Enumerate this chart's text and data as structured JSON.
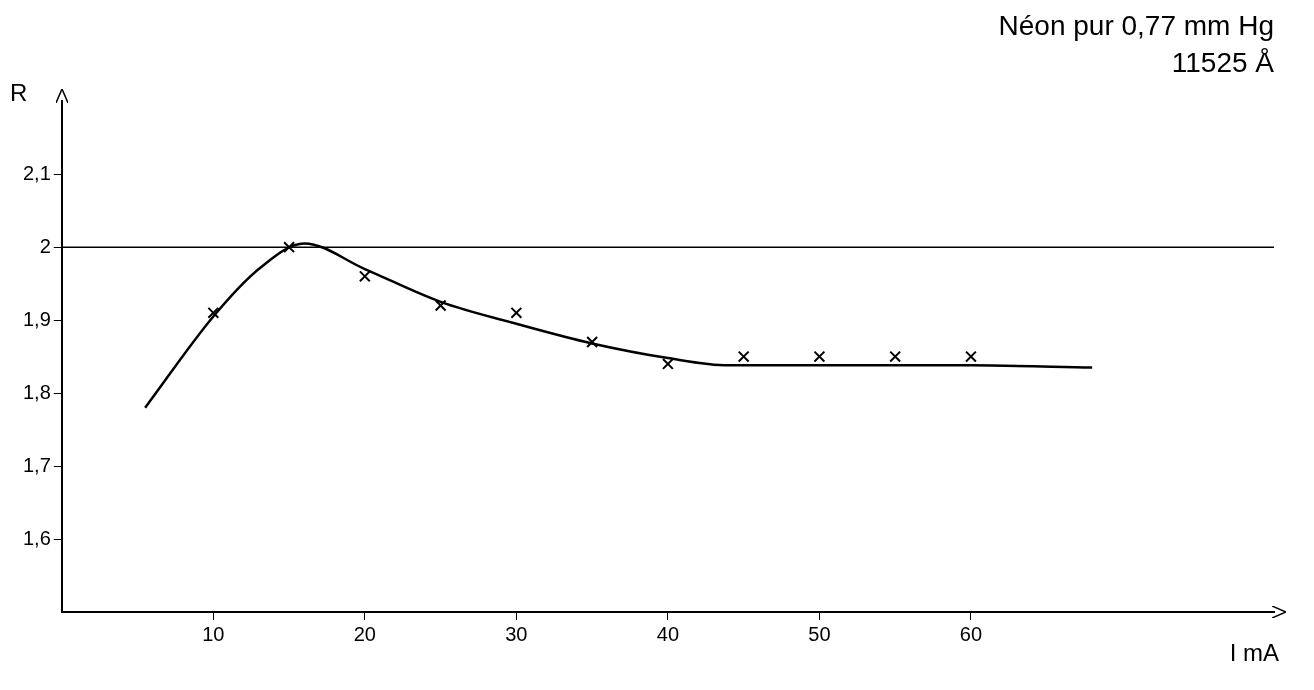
{
  "chart_data": {
    "type": "scatter",
    "title": "Néon pur 0,77 mm Hg",
    "subtitle": "11525 Å",
    "xlabel": "I mA",
    "ylabel": "R",
    "xlim": [
      0,
      80
    ],
    "ylim": [
      1.5,
      2.2
    ],
    "xticks": [
      10,
      20,
      30,
      40,
      50,
      60
    ],
    "yticks": [
      {
        "value": 1.6,
        "label": "1,6"
      },
      {
        "value": 1.7,
        "label": "1,7"
      },
      {
        "value": 1.8,
        "label": "1,8"
      },
      {
        "value": 1.9,
        "label": "1,9"
      },
      2,
      {
        "value": 2.1,
        "label": "2,1"
      }
    ],
    "grid": false,
    "legend": false,
    "series": [
      {
        "marker": "cross",
        "color": "#000000",
        "x": [
          10,
          15,
          20,
          25,
          30,
          35,
          40,
          45,
          50,
          55,
          60
        ],
        "values": [
          1.91,
          2.0,
          1.96,
          1.92,
          1.91,
          1.87,
          1.84,
          1.85,
          1.85,
          1.85,
          1.85
        ]
      },
      {
        "type": "line",
        "marker": "none",
        "line_style": "solid",
        "color": "#000000",
        "x": [
          5.5,
          10,
          13,
          16,
          20,
          25,
          30,
          35,
          40,
          44,
          50,
          60,
          68
        ],
        "values": [
          1.78,
          1.905,
          1.97,
          2.005,
          1.97,
          1.925,
          1.895,
          1.868,
          1.848,
          1.838,
          1.838,
          1.838,
          1.835
        ]
      }
    ],
    "ref_lines": [
      {
        "axis": "y",
        "value": 2,
        "color": "#000000"
      }
    ]
  }
}
